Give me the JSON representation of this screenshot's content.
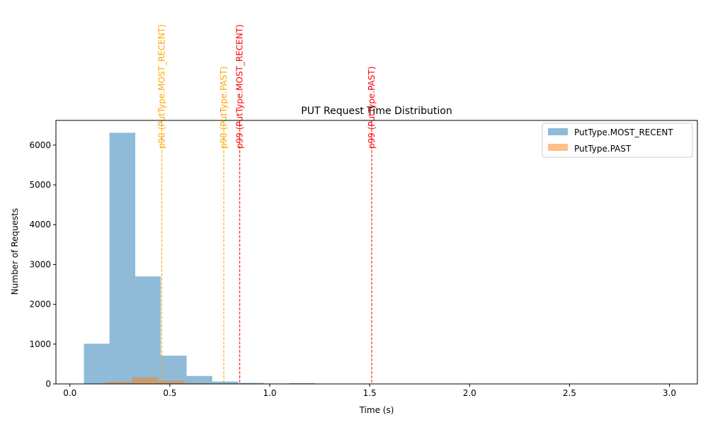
{
  "chart_data": {
    "type": "bar",
    "title": "PUT Request Time Distribution",
    "xlabel": "Time (s)",
    "ylabel": "Number of Requests",
    "xlim": [
      -0.07,
      3.14
    ],
    "ylim": [
      0,
      6620
    ],
    "xticks": [
      {
        "value": 0.0,
        "label": "0.0"
      },
      {
        "value": 0.5,
        "label": "0.5"
      },
      {
        "value": 1.0,
        "label": "1.0"
      },
      {
        "value": 1.5,
        "label": "1.5"
      },
      {
        "value": 2.0,
        "label": "2.0"
      },
      {
        "value": 2.5,
        "label": "2.5"
      },
      {
        "value": 3.0,
        "label": "3.0"
      }
    ],
    "yticks": [
      {
        "value": 0,
        "label": "0"
      },
      {
        "value": 1000,
        "label": "1000"
      },
      {
        "value": 2000,
        "label": "2000"
      },
      {
        "value": 3000,
        "label": "3000"
      },
      {
        "value": 4000,
        "label": "4000"
      },
      {
        "value": 5000,
        "label": "5000"
      },
      {
        "value": 6000,
        "label": "6000"
      }
    ],
    "legend_position": "top-right",
    "grid": false,
    "series": [
      {
        "name": "PutType.MOST_RECENT",
        "color": "#1f77b4",
        "opacity": 0.5,
        "bins": [
          {
            "x0": 0.07,
            "x1": 0.198,
            "count": 1010
          },
          {
            "x0": 0.198,
            "x1": 0.327,
            "count": 6310
          },
          {
            "x0": 0.327,
            "x1": 0.455,
            "count": 2700
          },
          {
            "x0": 0.455,
            "x1": 0.584,
            "count": 710
          },
          {
            "x0": 0.584,
            "x1": 0.712,
            "count": 200
          },
          {
            "x0": 0.712,
            "x1": 0.841,
            "count": 60
          },
          {
            "x0": 0.841,
            "x1": 0.969,
            "count": 25
          },
          {
            "x0": 0.969,
            "x1": 1.098,
            "count": 10
          },
          {
            "x0": 1.098,
            "x1": 1.226,
            "count": 20
          },
          {
            "x0": 1.226,
            "x1": 1.355,
            "count": 5
          },
          {
            "x0": 1.355,
            "x1": 1.483,
            "count": 5
          },
          {
            "x0": 1.483,
            "x1": 1.612,
            "count": 3
          },
          {
            "x0": 2.254,
            "x1": 2.382,
            "count": 3
          },
          {
            "x0": 2.382,
            "x1": 2.511,
            "count": 3
          },
          {
            "x0": 2.511,
            "x1": 2.639,
            "count": 3
          }
        ]
      },
      {
        "name": "PutType.PAST",
        "color": "#ff7f0e",
        "opacity": 0.5,
        "bins": [
          {
            "x0": 0.18,
            "x1": 0.31,
            "count": 50
          },
          {
            "x0": 0.31,
            "x1": 0.44,
            "count": 170
          },
          {
            "x0": 0.44,
            "x1": 0.57,
            "count": 80
          },
          {
            "x0": 0.57,
            "x1": 0.7,
            "count": 20
          },
          {
            "x0": 0.7,
            "x1": 0.83,
            "count": 10
          },
          {
            "x0": 0.83,
            "x1": 0.96,
            "count": 5
          },
          {
            "x0": 0.96,
            "x1": 1.09,
            "count": 4
          },
          {
            "x0": 1.09,
            "x1": 1.22,
            "count": 3
          },
          {
            "x0": 1.22,
            "x1": 1.35,
            "count": 3
          },
          {
            "x0": 1.35,
            "x1": 1.48,
            "count": 3
          }
        ]
      }
    ],
    "annotations": [
      {
        "label": "p90 (PutType.MOST_RECENT)",
        "x": 0.46,
        "color": "#ffa500"
      },
      {
        "label": "p90 (PutType.PAST)",
        "x": 0.77,
        "color": "#ffa500"
      },
      {
        "label": "p99 (PutType.MOST_RECENT)",
        "x": 0.85,
        "color": "#ff0000"
      },
      {
        "label": "p99 (PutType.PAST)",
        "x": 1.51,
        "color": "#ff0000"
      }
    ]
  }
}
